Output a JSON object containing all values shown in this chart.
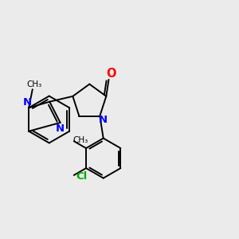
{
  "bg_color": "#ebebeb",
  "bond_color": "#000000",
  "n_color": "#0000ff",
  "o_color": "#ff0000",
  "cl_color": "#00aa00",
  "lw": 1.4,
  "fs": 8.5,
  "figsize": [
    3.0,
    3.0
  ],
  "dpi": 100,
  "xlim": [
    -1.5,
    8.5
  ],
  "ylim": [
    -3.5,
    4.5
  ]
}
